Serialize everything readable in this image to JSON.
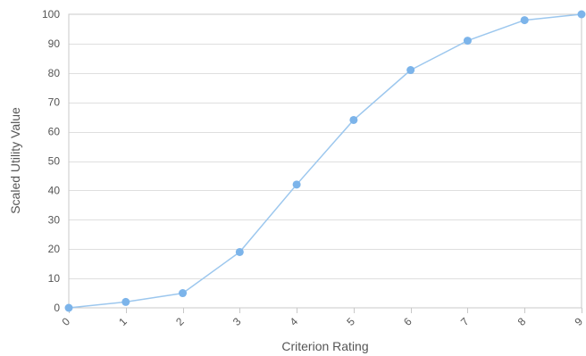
{
  "chart_data": {
    "type": "line",
    "title": "",
    "xlabel": "Criterion Rating",
    "ylabel": "Scaled Utility Value",
    "x": [
      0,
      1,
      2,
      3,
      4,
      5,
      6,
      7,
      8,
      9
    ],
    "x_tick_labels": [
      "0",
      "1",
      "2",
      "3",
      "4",
      "5",
      "6",
      "7",
      "8",
      "9"
    ],
    "y_tick_labels": [
      "0",
      "10",
      "20",
      "30",
      "40",
      "50",
      "60",
      "70",
      "80",
      "90",
      "100"
    ],
    "series": [
      {
        "values": [
          0,
          2,
          5,
          19,
          42,
          64,
          81,
          91,
          98,
          100
        ]
      }
    ],
    "xlim": [
      0,
      9
    ],
    "ylim": [
      0,
      100
    ],
    "grid": true,
    "legend": "none",
    "colors": {
      "line": "#9cc7ee",
      "marker": "#7cb4ea",
      "grid": "#dfdfdf",
      "frame": "#c8c8c8",
      "text": "#555555"
    }
  }
}
